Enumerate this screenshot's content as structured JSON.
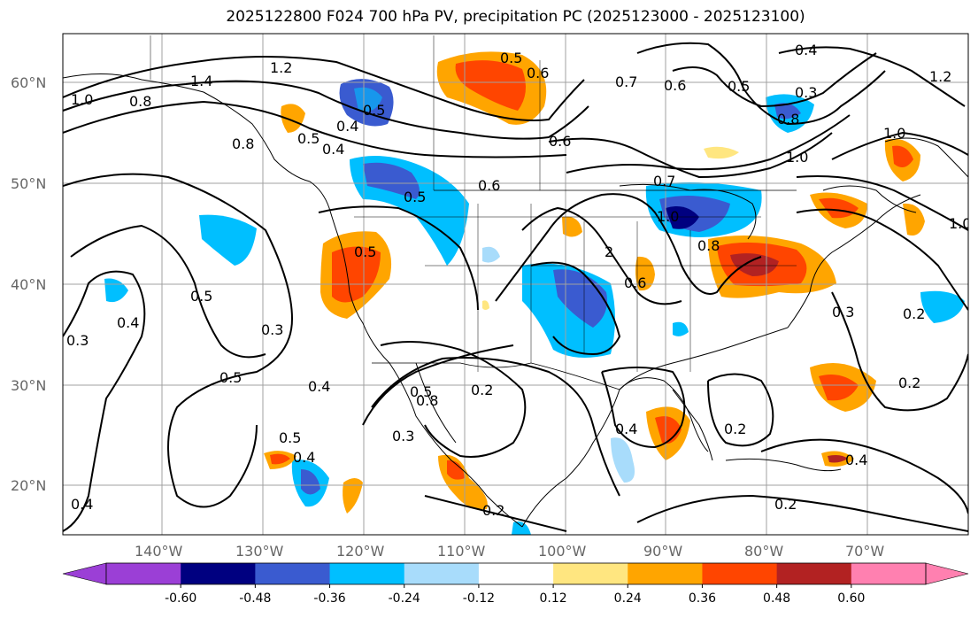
{
  "title": "2025122800 F024 700 hPa PV, precipitation PC (2025123000 - 2025123100)",
  "lat_labels": [
    "60°N",
    "50°N",
    "40°N",
    "30°N",
    "20°N"
  ],
  "lon_labels": [
    "140°W",
    "130°W",
    "120°W",
    "110°W",
    "100°W",
    "90°W",
    "80°W",
    "70°W"
  ],
  "colorbar": {
    "ticks": [
      "-0.60",
      "-0.48",
      "-0.36",
      "-0.24",
      "-0.12",
      "0.12",
      "0.24",
      "0.36",
      "0.48",
      "0.60"
    ],
    "colors": [
      "#9b3fd6",
      "#000080",
      "#3a5bd0",
      "#00bfff",
      "#a8dcfb",
      "#ffffff",
      "#ffe680",
      "#ffa500",
      "#ff4500",
      "#b22222",
      "#ff80b0",
      "#ff80b0"
    ]
  },
  "contour_labels": [
    "1.0",
    "0.8",
    "1.4",
    "1.2",
    "0.8",
    "0.5",
    "0.4",
    "0.5",
    "0.6",
    "0.5",
    "0.7",
    "0.6",
    "0.5",
    "0.3",
    "0.8",
    "1.0",
    "0.4",
    "1.2",
    "1.0",
    "0.7",
    "1.0",
    "1.0",
    "0.8",
    "0.5",
    "2",
    "0.6",
    "0.5",
    "0.4",
    "0.3",
    "0.3",
    "0.5",
    "0.5",
    "0.4",
    "0.8",
    "0.5",
    "0.3",
    "0.2",
    "0.4",
    "0.2",
    "0.4",
    "0.3",
    "0.2",
    "0.4",
    "0.2",
    "0.5",
    "0.4",
    "0.4",
    "0.2",
    "0.6",
    "0.6",
    "0.2"
  ]
}
